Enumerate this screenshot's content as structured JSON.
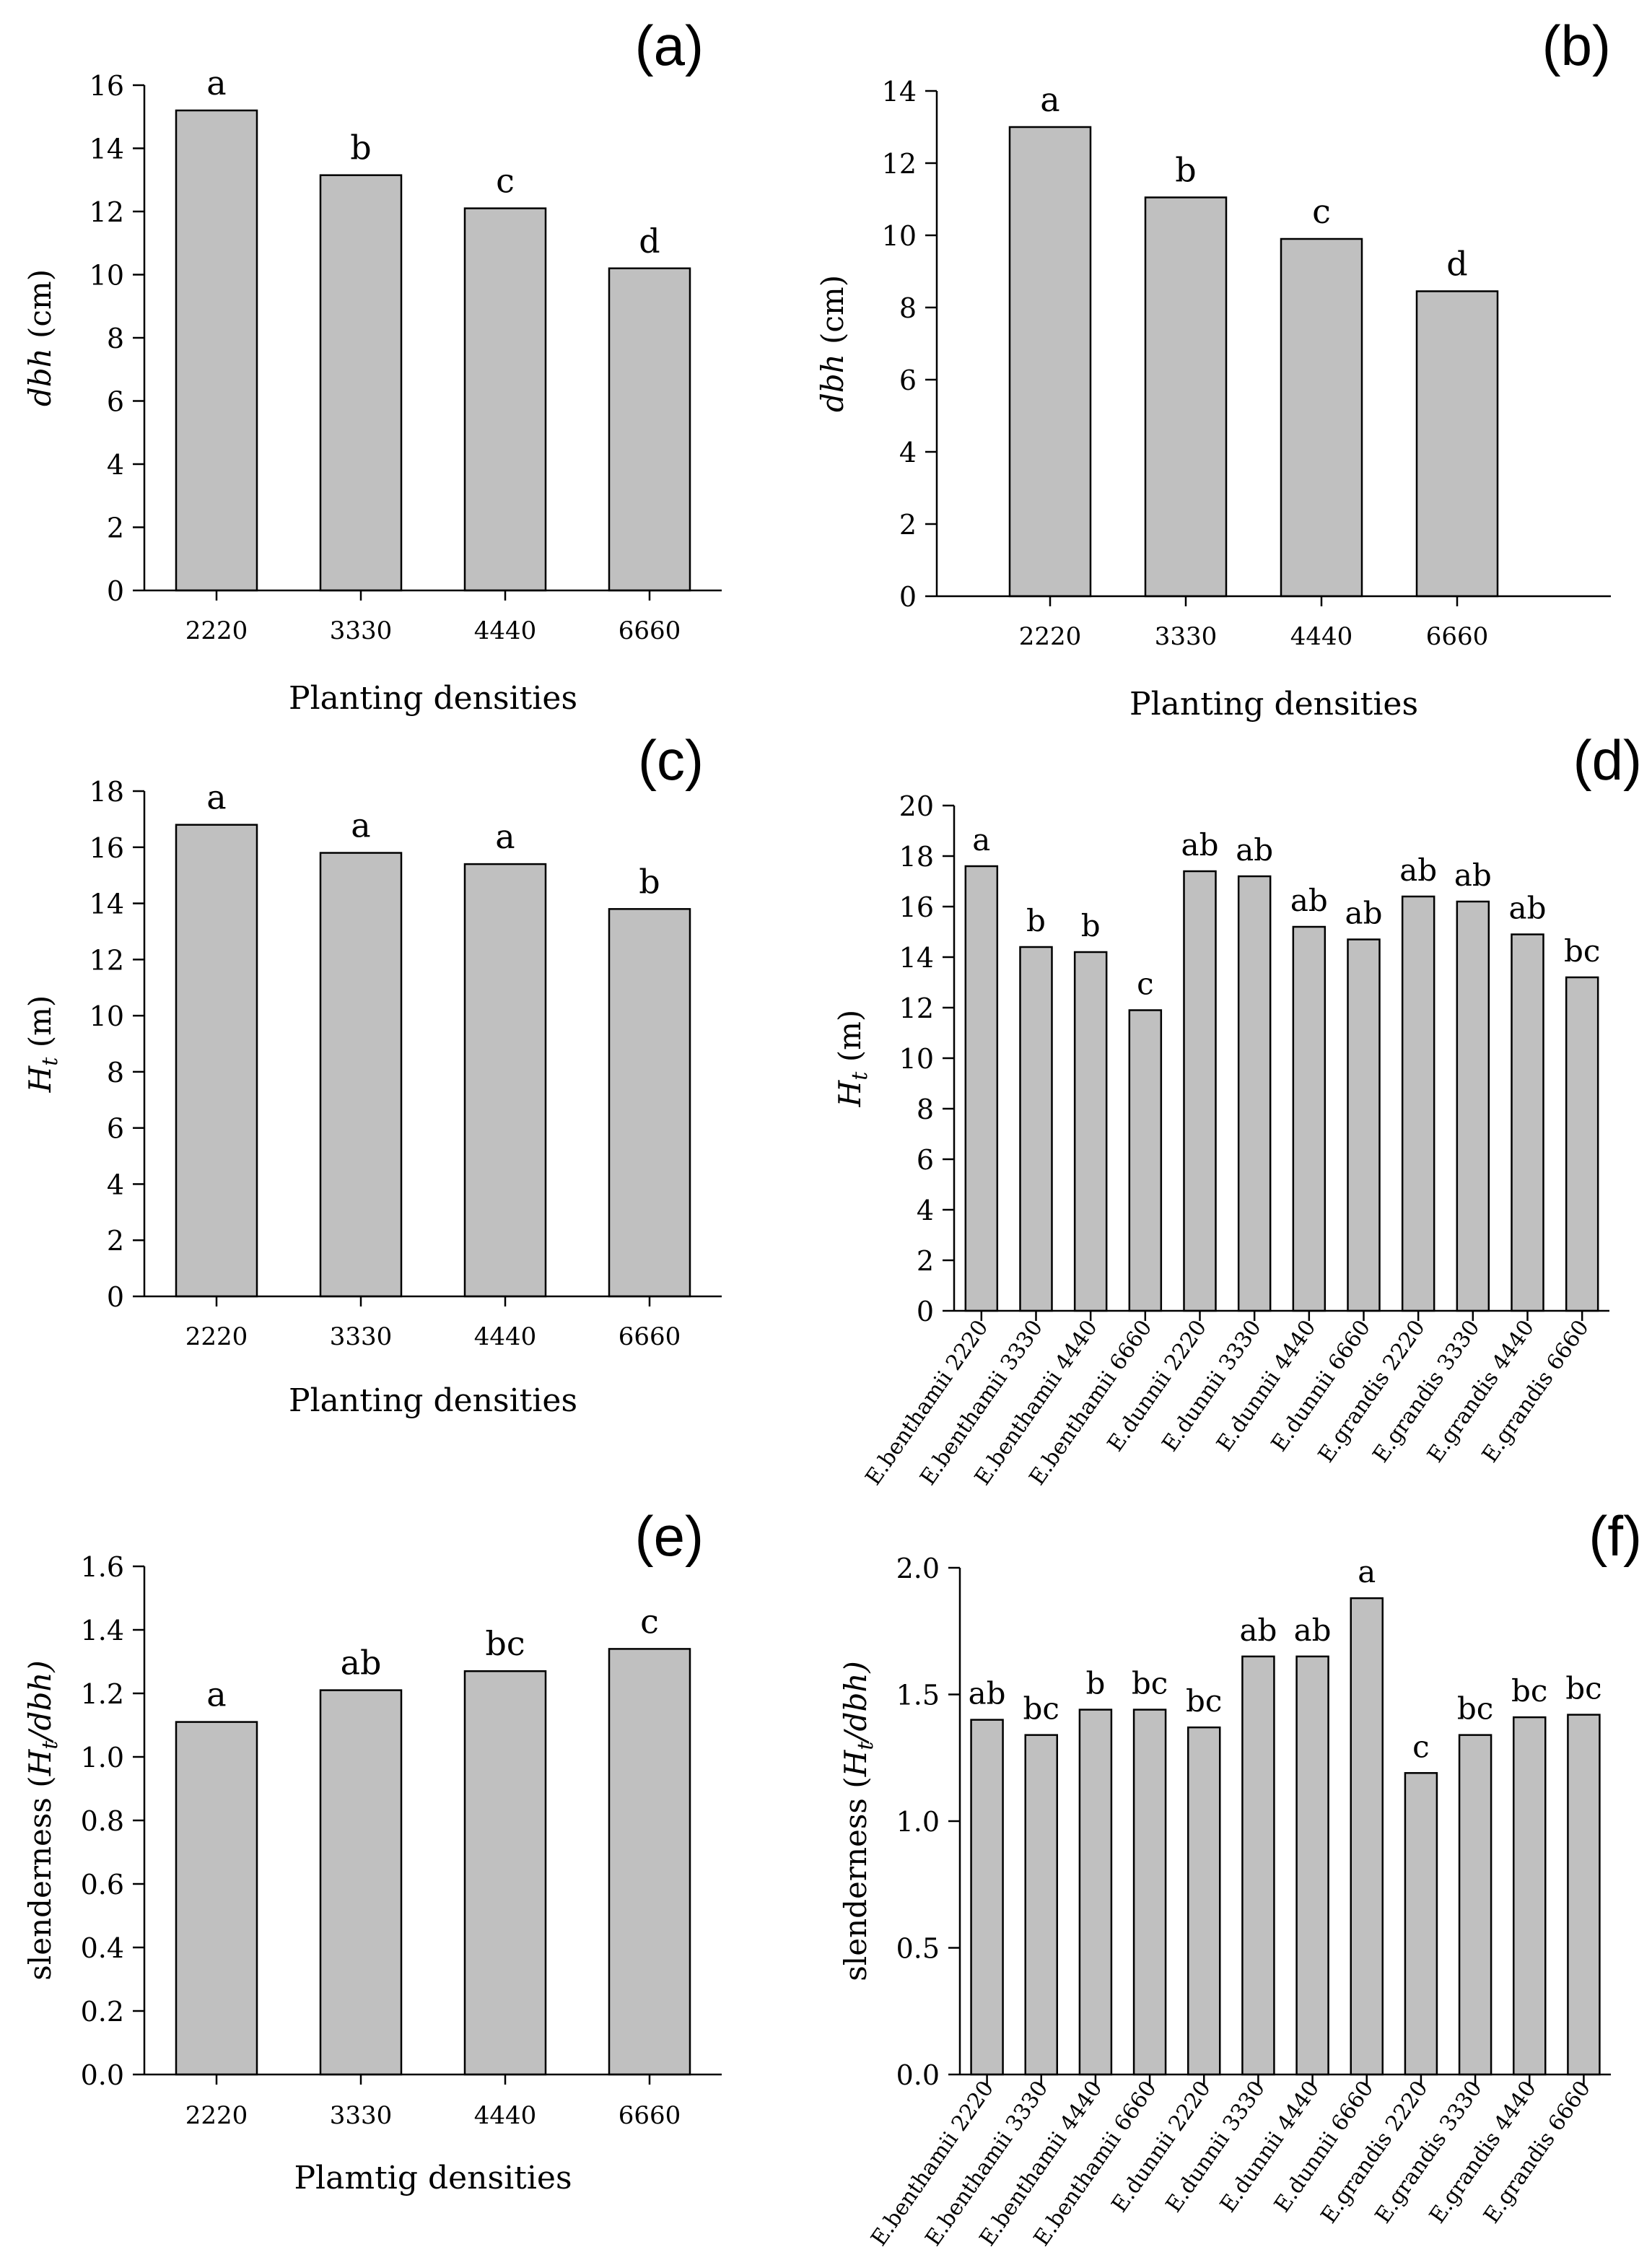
{
  "figure": {
    "panels": [
      {
        "type": "bar",
        "panel_label": "(a)",
        "categories": [
          "2220",
          "3330",
          "4440",
          "6660"
        ],
        "values": [
          15.2,
          13.15,
          12.1,
          10.2
        ],
        "letters": [
          "a",
          "b",
          "c",
          "d"
        ],
        "ylabel_main": "dbh",
        "ylabel_main_italic": true,
        "ylabel_unit": " (cm)",
        "ylabel_sub": "",
        "ylabel_after": "",
        "xlabel": "Planting densities",
        "ylim": [
          0,
          16
        ],
        "yticks": [
          "0",
          "2",
          "4",
          "6",
          "8",
          "10",
          "12",
          "14",
          "16"
        ],
        "rotate_categories": false
      },
      {
        "type": "bar",
        "panel_label": "(b)",
        "categories": [
          "2220",
          "3330",
          "4440",
          "6660"
        ],
        "values": [
          13.0,
          11.05,
          9.9,
          8.45
        ],
        "letters": [
          "a",
          "b",
          "c",
          "d"
        ],
        "ylabel_main": "dbh",
        "ylabel_main_italic": true,
        "ylabel_unit": " (cm)",
        "ylabel_sub": "",
        "ylabel_after": "",
        "xlabel": "Planting densities",
        "ylim": [
          0,
          14
        ],
        "yticks": [
          "0",
          "2",
          "4",
          "6",
          "8",
          "10",
          "12",
          "14"
        ],
        "rotate_categories": false
      },
      {
        "type": "bar",
        "panel_label": "(c)",
        "categories": [
          "2220",
          "3330",
          "4440",
          "6660"
        ],
        "values": [
          16.8,
          15.8,
          15.4,
          13.8
        ],
        "letters": [
          "a",
          "a",
          "a",
          "b"
        ],
        "ylabel_main": "H",
        "ylabel_main_italic": true,
        "ylabel_sub": "t",
        "ylabel_unit": " (m)",
        "ylabel_after": "",
        "xlabel": "Planting densities",
        "ylim": [
          0,
          18
        ],
        "yticks": [
          "0",
          "2",
          "4",
          "6",
          "8",
          "10",
          "12",
          "14",
          "16",
          "18"
        ],
        "rotate_categories": false
      },
      {
        "type": "bar",
        "panel_label": "(d)",
        "categories": [
          "E.benthamii 2220",
          "E.benthamii 3330",
          "E.benthamii 4440",
          "E.benthamii 6660",
          "E.dunnii 2220",
          "E.dunnii 3330",
          "E.dunnii 4440",
          "E.dunnii 6660",
          "E.grandis 2220",
          "E.grandis 3330",
          "E.grandis 4440",
          "E.grandis 6660"
        ],
        "values": [
          17.6,
          14.4,
          14.2,
          11.9,
          17.4,
          17.2,
          15.2,
          14.7,
          16.4,
          16.2,
          14.9,
          13.2
        ],
        "letters": [
          "a",
          "b",
          "b",
          "c",
          "ab",
          "ab",
          "ab",
          "ab",
          "ab",
          "ab",
          "ab",
          "bc"
        ],
        "ylabel_main": "H",
        "ylabel_main_italic": true,
        "ylabel_sub": "t",
        "ylabel_unit": " (m)",
        "ylabel_after": "",
        "xlabel": "",
        "ylim": [
          0,
          20
        ],
        "yticks": [
          "0",
          "2",
          "4",
          "6",
          "8",
          "10",
          "12",
          "14",
          "16",
          "18",
          "20"
        ],
        "rotate_categories": true
      },
      {
        "type": "bar",
        "panel_label": "(e)",
        "categories": [
          "2220",
          "3330",
          "4440",
          "6660"
        ],
        "values": [
          1.11,
          1.21,
          1.27,
          1.34
        ],
        "letters": [
          "a",
          "ab",
          "bc",
          "c"
        ],
        "ylabel_main": "slenderness  (",
        "ylabel_main_italic": false,
        "ylabel_sub": "t",
        "ylabel_unit": "",
        "ylabel_after": "/dbh)",
        "xlabel": "Plamtig densities",
        "ylim": [
          0,
          1.6
        ],
        "yticks": [
          "0.0",
          "0.2",
          "0.4",
          "0.6",
          "0.8",
          "1.0",
          "1.2",
          "1.4",
          "1.6"
        ],
        "rotate_categories": false
      },
      {
        "type": "bar",
        "panel_label": "(f)",
        "categories": [
          "E.benthamii 2220",
          "E.benthamii 3330",
          "E.benthamii 4440",
          "E.benthamii 6660",
          "E.dunnii 2220",
          "E.dunnii 3330",
          "E.dunnii 4440",
          "E.dunnii 6660",
          "E.grandis 2220",
          "E.grandis 3330",
          "E.grandis 4440",
          "E.grandis 6660"
        ],
        "values": [
          1.4,
          1.34,
          1.44,
          1.44,
          1.37,
          1.65,
          1.65,
          1.88,
          1.19,
          1.34,
          1.41,
          1.42
        ],
        "letters": [
          "ab",
          "bc",
          "b",
          "bc",
          "bc",
          "ab",
          "ab",
          "a",
          "c",
          "bc",
          "bc",
          "bc"
        ],
        "ylabel_main": "slenderness  (",
        "ylabel_main_italic": false,
        "ylabel_sub": "t",
        "ylabel_unit": "",
        "ylabel_after": "/dbh)",
        "xlabel": "",
        "ylim": [
          0,
          2.0
        ],
        "yticks": [
          "0.0",
          "0.5",
          "1.0",
          "1.5",
          "2.0"
        ],
        "rotate_categories": true
      }
    ]
  },
  "chart_data": [
    {
      "type": "bar",
      "title": "(a)",
      "categories": [
        "2220",
        "3330",
        "4440",
        "6660"
      ],
      "values": [
        15.2,
        13.15,
        12.1,
        10.2
      ],
      "xlabel": "Planting densities",
      "ylabel": "dbh (cm)",
      "ylim": [
        0,
        16
      ]
    },
    {
      "type": "bar",
      "title": "(b)",
      "categories": [
        "2220",
        "3330",
        "4440",
        "6660"
      ],
      "values": [
        13.0,
        11.05,
        9.9,
        8.45
      ],
      "xlabel": "Planting densities",
      "ylabel": "dbh (cm)",
      "ylim": [
        0,
        14
      ]
    },
    {
      "type": "bar",
      "title": "(c)",
      "categories": [
        "2220",
        "3330",
        "4440",
        "6660"
      ],
      "values": [
        16.8,
        15.8,
        15.4,
        13.8
      ],
      "xlabel": "Planting densities",
      "ylabel": "Ht (m)",
      "ylim": [
        0,
        18
      ]
    },
    {
      "type": "bar",
      "title": "(d)",
      "categories": [
        "E.benthamii 2220",
        "E.benthamii 3330",
        "E.benthamii 4440",
        "E.benthamii 6660",
        "E.dunnii 2220",
        "E.dunnii 3330",
        "E.dunnii 4440",
        "E.dunnii 6660",
        "E.grandis 2220",
        "E.grandis 3330",
        "E.grandis 4440",
        "E.grandis 6660"
      ],
      "values": [
        17.6,
        14.4,
        14.2,
        11.9,
        17.4,
        17.2,
        15.2,
        14.7,
        16.4,
        16.2,
        14.9,
        13.2
      ],
      "xlabel": "",
      "ylabel": "Ht (m)",
      "ylim": [
        0,
        20
      ]
    },
    {
      "type": "bar",
      "title": "(e)",
      "categories": [
        "2220",
        "3330",
        "4440",
        "6660"
      ],
      "values": [
        1.11,
        1.21,
        1.27,
        1.34
      ],
      "xlabel": "Plamtig densities",
      "ylabel": "slenderness (Ht/dbh)",
      "ylim": [
        0,
        1.6
      ]
    },
    {
      "type": "bar",
      "title": "(f)",
      "categories": [
        "E.benthamii 2220",
        "E.benthamii 3330",
        "E.benthamii 4440",
        "E.benthamii 6660",
        "E.dunnii 2220",
        "E.dunnii 3330",
        "E.dunnii 4440",
        "E.dunnii 6660",
        "E.grandis 2220",
        "E.grandis 3330",
        "E.grandis 4440",
        "E.grandis 6660"
      ],
      "values": [
        1.4,
        1.34,
        1.44,
        1.44,
        1.37,
        1.65,
        1.65,
        1.88,
        1.19,
        1.34,
        1.41,
        1.42
      ],
      "xlabel": "",
      "ylabel": "slenderness (Ht/dbh)",
      "ylim": [
        0,
        2.0
      ]
    }
  ],
  "colors": {
    "bar_fill": "#c0c0c0",
    "bar_stroke": "#000000",
    "axis": "#000000",
    "text": "#000000"
  }
}
